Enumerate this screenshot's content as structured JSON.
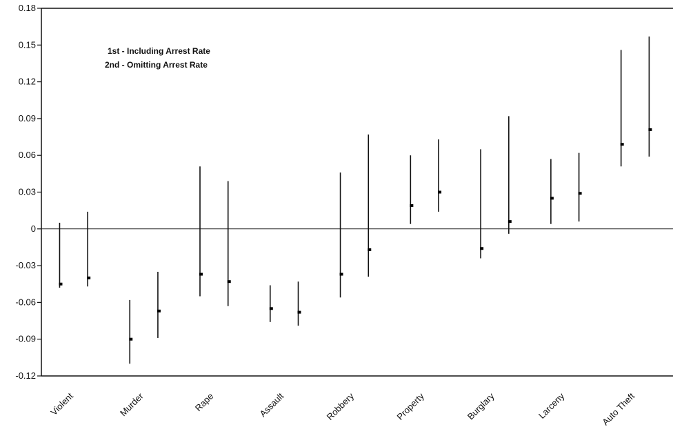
{
  "chart_data": {
    "type": "error-bar",
    "title": "",
    "xlabel": "",
    "ylabel": "",
    "ylim": [
      -0.12,
      0.18
    ],
    "yticks": [
      {
        "value": 0.18,
        "label": "0.18"
      },
      {
        "value": 0.15,
        "label": "0.15"
      },
      {
        "value": 0.12,
        "label": "0.12"
      },
      {
        "value": 0.09,
        "label": "0.09"
      },
      {
        "value": 0.06,
        "label": "0.06"
      },
      {
        "value": 0.03,
        "label": "0.03"
      },
      {
        "value": 0,
        "label": "0"
      },
      {
        "value": -0.03,
        "label": "-0.03"
      },
      {
        "value": -0.06,
        "label": "-0.06"
      },
      {
        "value": -0.09,
        "label": "-0.09"
      },
      {
        "value": -0.12,
        "label": "-0.12"
      }
    ],
    "categories": [
      "Violent",
      "Murder",
      "Rape",
      "Assault",
      "Robbery",
      "Property",
      "Burglary",
      "Larceny",
      "Auto Theft"
    ],
    "legend": {
      "position": "top-left",
      "lines": [
        "1st - Including Arrest Rate",
        "2nd - Omitting Arrest Rate"
      ]
    },
    "series": [
      {
        "estimates": [
          -0.045,
          -0.09,
          -0.037,
          -0.065,
          -0.037,
          0.019,
          -0.016,
          0.025,
          0.069
        ],
        "lower": [
          -0.048,
          -0.11,
          -0.055,
          -0.076,
          -0.056,
          0.004,
          -0.024,
          0.004,
          0.051
        ],
        "upper": [
          0.005,
          -0.058,
          0.051,
          -0.046,
          0.046,
          0.06,
          0.065,
          0.057,
          0.146
        ]
      },
      {
        "estimates": [
          -0.04,
          -0.067,
          -0.043,
          -0.068,
          -0.017,
          0.03,
          0.006,
          0.029,
          0.081
        ],
        "lower": [
          -0.047,
          -0.089,
          -0.063,
          -0.079,
          -0.039,
          0.014,
          -0.004,
          0.006,
          0.059
        ],
        "upper": [
          0.014,
          -0.035,
          0.039,
          -0.043,
          0.077,
          0.073,
          0.092,
          0.062,
          0.157
        ]
      }
    ]
  }
}
